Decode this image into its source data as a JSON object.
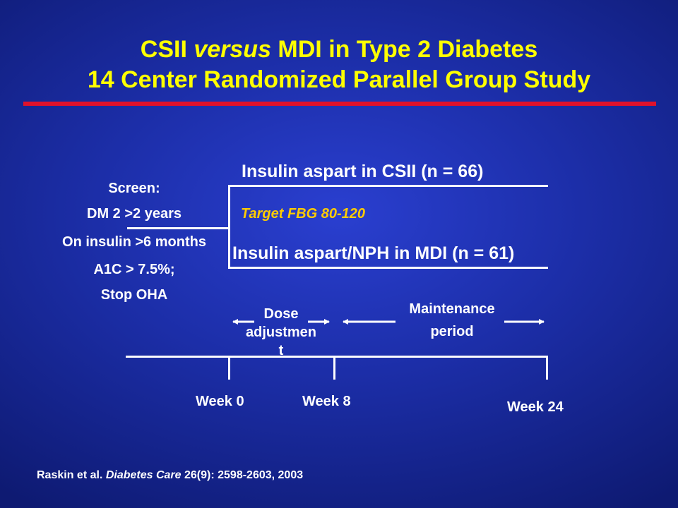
{
  "slide": {
    "title_line1_a": "CSII ",
    "title_line1_b": "versus",
    "title_line1_c": " MDI in Type 2 Diabetes",
    "title_line2": "14 Center Randomized Parallel Group Study"
  },
  "screen": {
    "items": [
      "Screen:",
      "DM 2 >2 years",
      "On insulin >6 months",
      "A1C > 7.5%;",
      "Stop OHA"
    ]
  },
  "arms": {
    "csii": "Insulin aspart in CSII (n = 66)",
    "target": "Target FBG 80-120",
    "mdi": "Insulin aspart/NPH in MDI (n = 61)"
  },
  "phases": {
    "dose_line1": "Dose",
    "dose_line2": "adjustmen",
    "dose_line3": "t",
    "maint_line1": "Maintenance",
    "maint_line2": "period"
  },
  "timeline": {
    "week0": "Week 0",
    "week8": "Week 8",
    "week24": "Week 24"
  },
  "reference": {
    "authors": "Raskin et al. ",
    "journal": "Diabetes Care",
    "details": " 26(9): 2598-2603, 2003"
  }
}
